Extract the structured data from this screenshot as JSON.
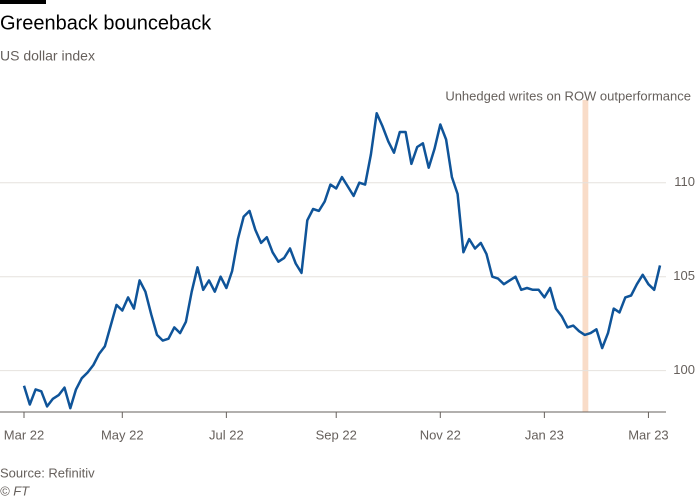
{
  "chart_data": {
    "type": "line",
    "title": "Greenback bounceback",
    "subtitle": "US dollar index",
    "source": "Source: Refinitiv",
    "credit": "© FT",
    "annotation": "Unhedged writes on ROW outperformance",
    "categories": [
      "Mar 22",
      null,
      null,
      null,
      null,
      null,
      null,
      null,
      null,
      null,
      null,
      null,
      null,
      null,
      null,
      null,
      null,
      "May 22",
      null,
      null,
      null,
      null,
      null,
      null,
      null,
      null,
      null,
      null,
      null,
      null,
      null,
      null,
      null,
      null,
      null,
      "Jul 22",
      null,
      null,
      null,
      null,
      null,
      null,
      null,
      null,
      null,
      null,
      null,
      null,
      null,
      null,
      null,
      null,
      null,
      null,
      "Sep 22",
      null,
      null,
      null,
      null,
      null,
      null,
      null,
      null,
      null,
      null,
      null,
      null,
      null,
      null,
      null,
      null,
      null,
      "Nov 22",
      null,
      null,
      null,
      null,
      null,
      null,
      null,
      null,
      null,
      null,
      null,
      null,
      null,
      null,
      null,
      null,
      null,
      "Jan 23",
      null,
      null,
      null,
      null,
      null,
      null,
      null,
      null,
      null,
      null,
      null,
      null,
      null,
      null,
      null,
      null,
      null,
      "Mar 23",
      null,
      null
    ],
    "series": [
      {
        "name": "US dollar index",
        "color": "#0f5499",
        "values": [
          99.2,
          98.2,
          99.0,
          98.9,
          98.1,
          98.5,
          98.7,
          99.1,
          98.0,
          99.0,
          99.6,
          99.9,
          100.3,
          100.9,
          101.3,
          102.4,
          103.5,
          103.2,
          103.9,
          103.3,
          104.8,
          104.2,
          103.0,
          101.9,
          101.6,
          101.7,
          102.3,
          102.0,
          102.6,
          104.2,
          105.5,
          104.3,
          104.8,
          104.2,
          105.0,
          104.4,
          105.3,
          107.0,
          108.2,
          108.5,
          107.5,
          106.8,
          107.1,
          106.3,
          105.8,
          106.0,
          106.5,
          105.7,
          105.2,
          108.0,
          108.6,
          108.5,
          109.0,
          109.9,
          109.7,
          110.3,
          109.8,
          109.3,
          110.0,
          109.9,
          111.5,
          113.7,
          113.0,
          112.2,
          111.6,
          112.7,
          112.7,
          111.0,
          111.9,
          112.1,
          110.8,
          111.8,
          113.1,
          112.3,
          110.3,
          109.4,
          106.3,
          107.0,
          106.5,
          106.8,
          106.2,
          105.0,
          104.9,
          104.6,
          104.8,
          105.0,
          104.3,
          104.4,
          104.3,
          104.3,
          103.9,
          104.4,
          103.3,
          102.9,
          102.3,
          102.4,
          102.1,
          101.9,
          102.0,
          102.2,
          101.2,
          102.0,
          103.3,
          103.1,
          103.9,
          104.0,
          104.6,
          105.1,
          104.6,
          104.3,
          105.6
        ]
      }
    ],
    "ylim": [
      97.8,
      115.2
    ],
    "yticks": [
      100,
      105,
      110
    ],
    "grid": true
  }
}
